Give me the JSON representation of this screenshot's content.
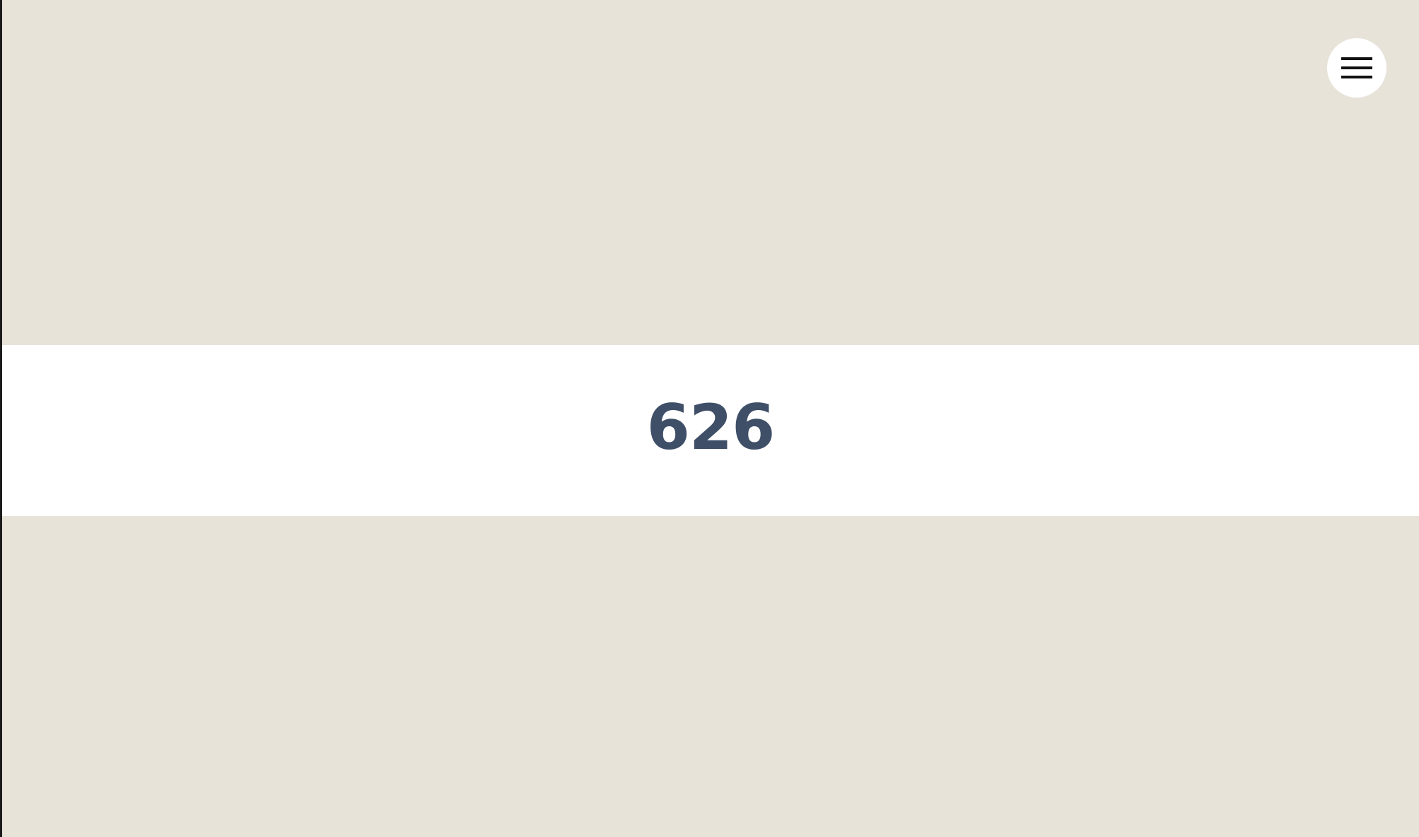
{
  "page": {
    "background_color": "#e7e3d9",
    "strip_color": "#ffffff",
    "number_color": "#3f4f68"
  },
  "main": {
    "number": "626"
  },
  "menu": {
    "icon": "hamburger-menu-icon"
  }
}
